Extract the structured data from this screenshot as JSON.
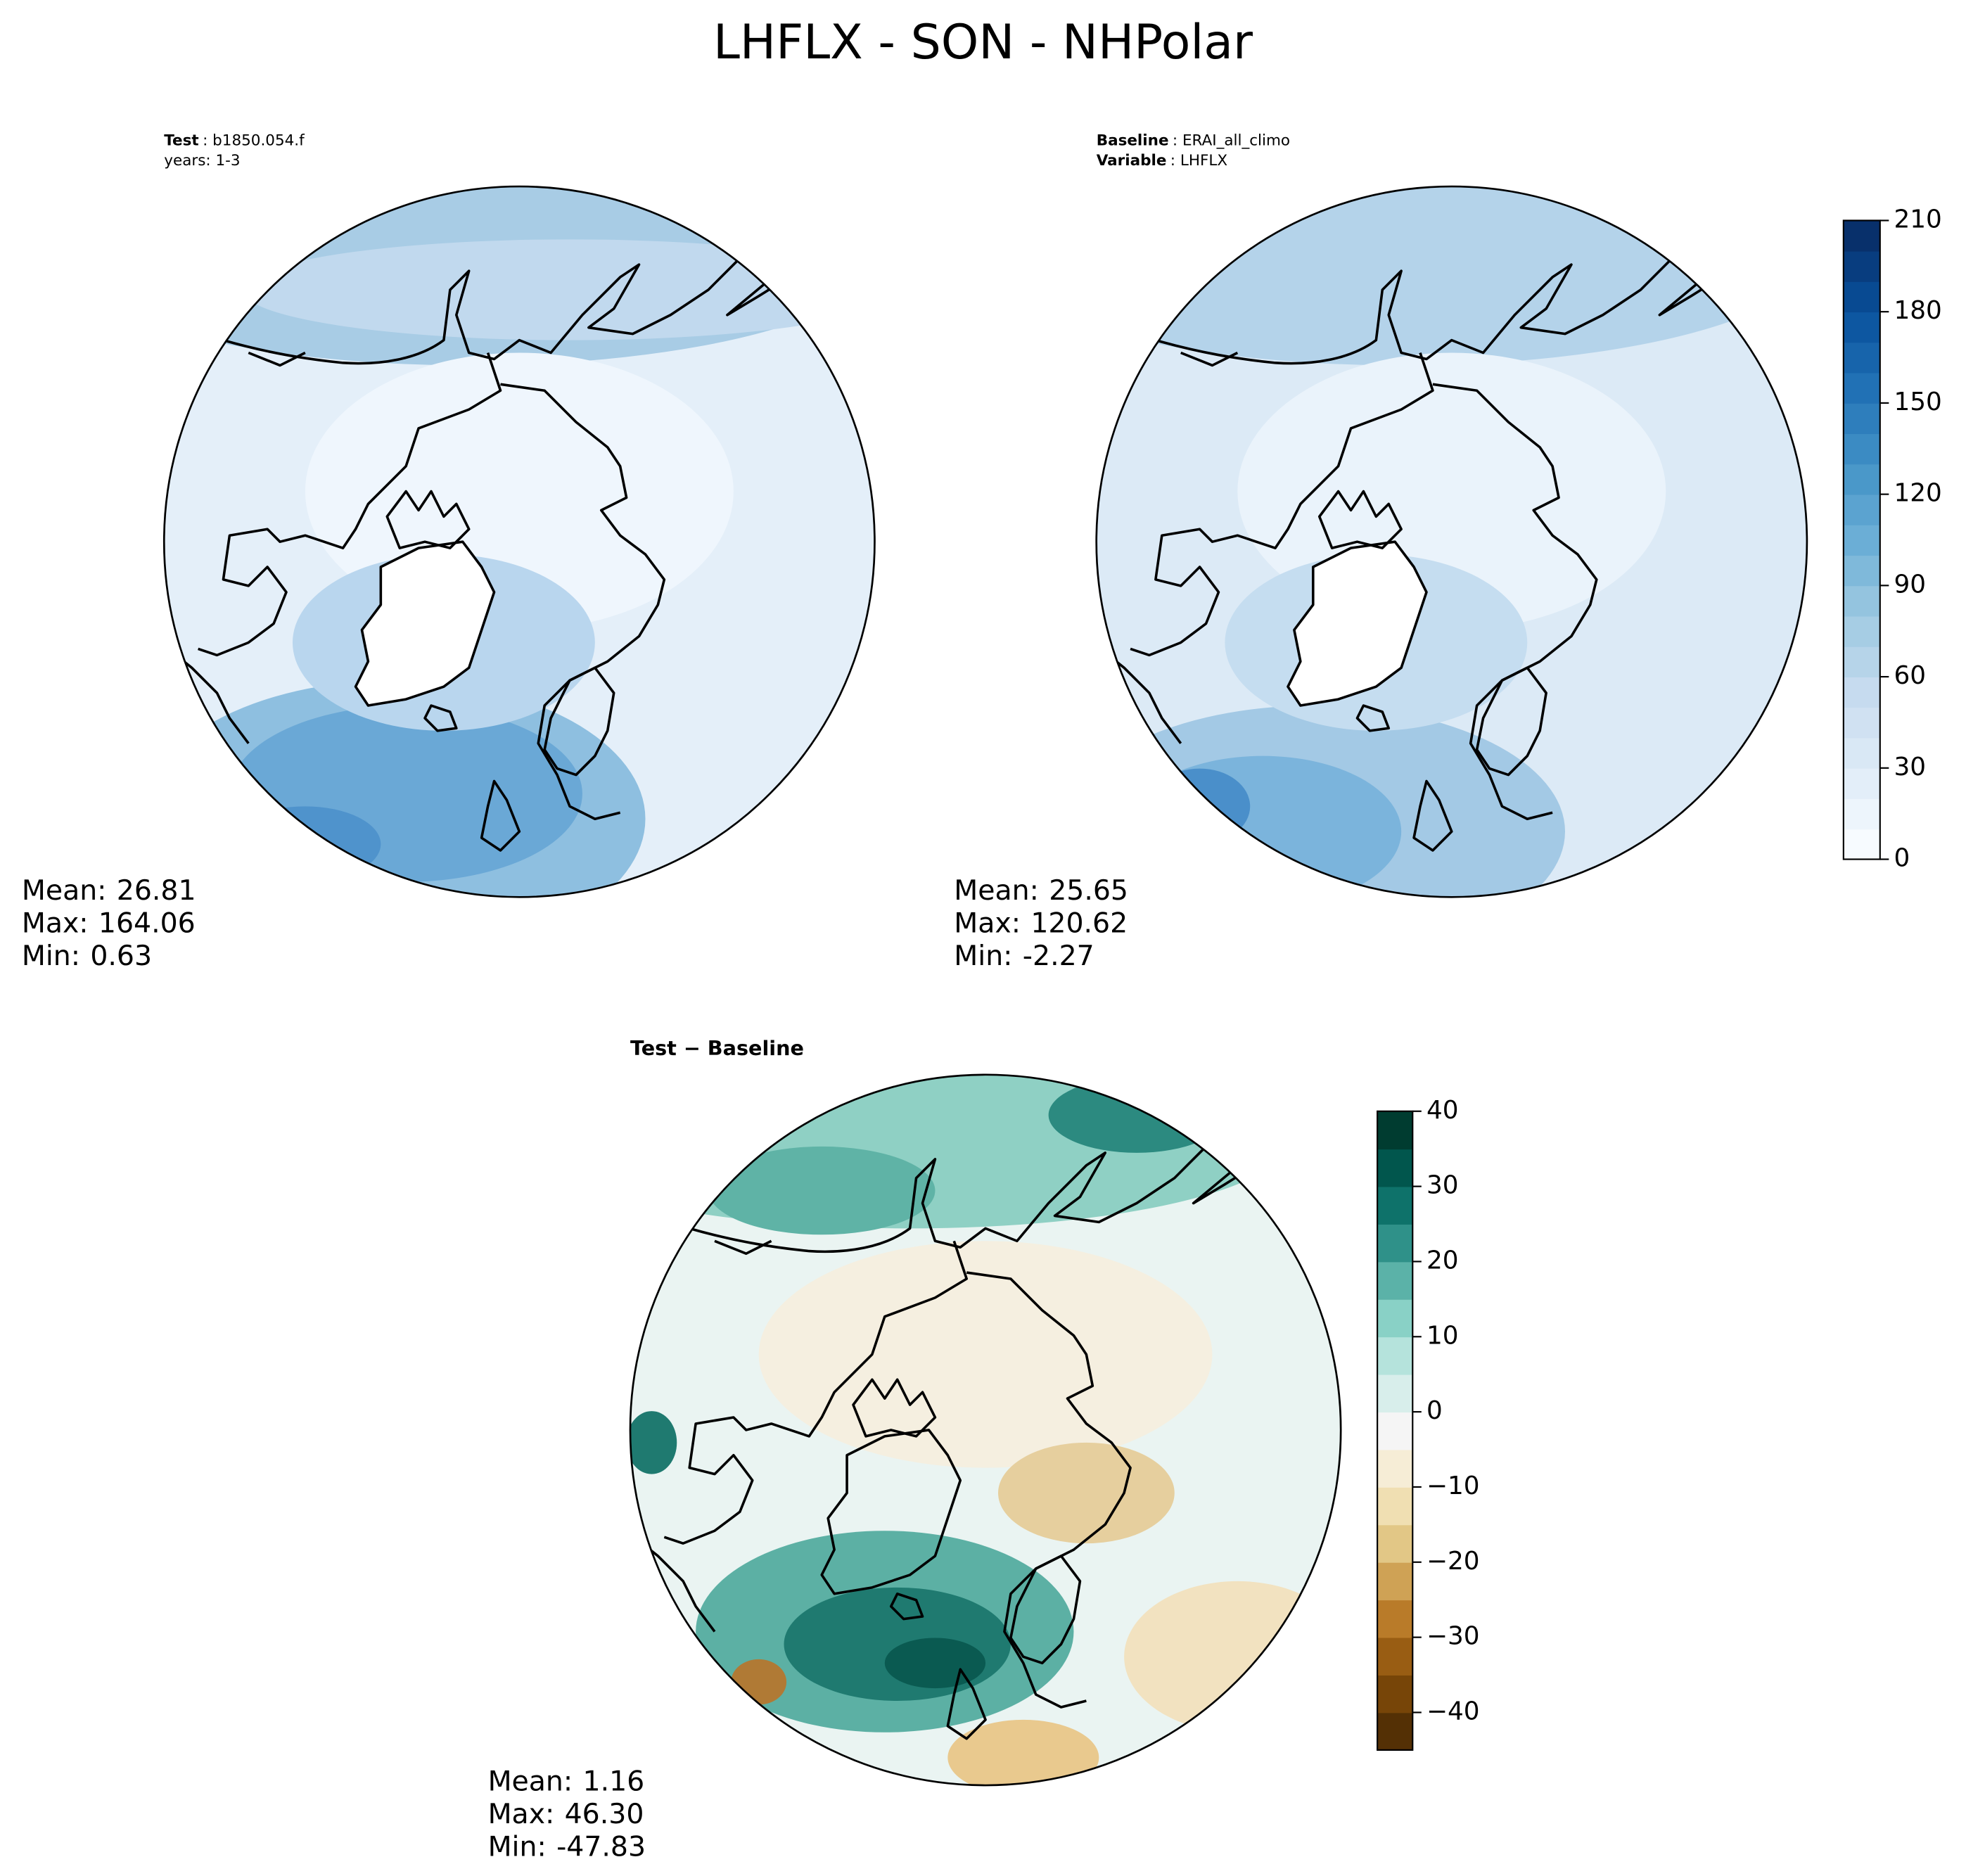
{
  "title": "LHFLX - SON - NHPolar",
  "chart_data": [
    {
      "type": "map",
      "header": [
        {
          "bold": "Test",
          "text": ": b1850.054.f"
        },
        {
          "text": "years: 1-3"
        }
      ],
      "stats": [
        {
          "name": "Mean:",
          "value": 26.81,
          "label": "26.81"
        },
        {
          "name": "Max:",
          "value": 164.06,
          "label": "164.06"
        },
        {
          "name": "Min:",
          "value": 0.63,
          "label": "0.63"
        }
      ]
    },
    {
      "type": "map",
      "header": [
        {
          "bold": "Baseline",
          "text": ": ERAI_all_climo"
        },
        {
          "bold": "Variable",
          "text": ": LHFLX"
        }
      ],
      "stats": [
        {
          "name": "Mean:",
          "value": 25.65,
          "label": "25.65"
        },
        {
          "name": "Max:",
          "value": 120.62,
          "label": "120.62"
        },
        {
          "name": "Min:",
          "value": -2.27,
          "label": "-2.27"
        }
      ],
      "colorbar": {
        "lim": [
          0,
          210
        ],
        "ticks": [
          0,
          30,
          60,
          90,
          120,
          150,
          180,
          210
        ],
        "levels": [
          0,
          10,
          20,
          30,
          40,
          50,
          60,
          70,
          80,
          90,
          100,
          110,
          120,
          130,
          140,
          150,
          160,
          170,
          180,
          190,
          200,
          210
        ],
        "colors": [
          "#f7fbff",
          "#deebf7",
          "#c6dbef",
          "#9ecae1",
          "#6baed6",
          "#4292c6",
          "#2171b5",
          "#08519c",
          "#08306b"
        ]
      }
    },
    {
      "type": "map",
      "header": [
        {
          "bold": "Test − Baseline"
        }
      ],
      "stats": [
        {
          "name": "Mean:",
          "value": 1.16,
          "label": "1.16"
        },
        {
          "name": "Max:",
          "value": 46.3,
          "label": "46.30"
        },
        {
          "name": "Min:",
          "value": -47.83,
          "label": "-47.83"
        }
      ],
      "colorbar": {
        "lim": [
          -45,
          40
        ],
        "ticks": [
          {
            "value": -40,
            "label": "−40"
          },
          {
            "value": -30,
            "label": "−30"
          },
          {
            "value": -20,
            "label": "−20"
          },
          {
            "value": -10,
            "label": "−10"
          },
          0,
          10,
          20,
          30,
          40
        ],
        "levels": [
          -45,
          -40,
          -35,
          -30,
          -25,
          -20,
          -15,
          -10,
          -5,
          0,
          5,
          10,
          15,
          20,
          25,
          30,
          35,
          40
        ],
        "colors": [
          "#543005",
          "#8c510a",
          "#bf812d",
          "#dfc27d",
          "#f6e8c3",
          "#f5f5f5",
          "#c7eae5",
          "#80cdc1",
          "#35978f",
          "#01665e",
          "#003c30"
        ]
      }
    }
  ]
}
